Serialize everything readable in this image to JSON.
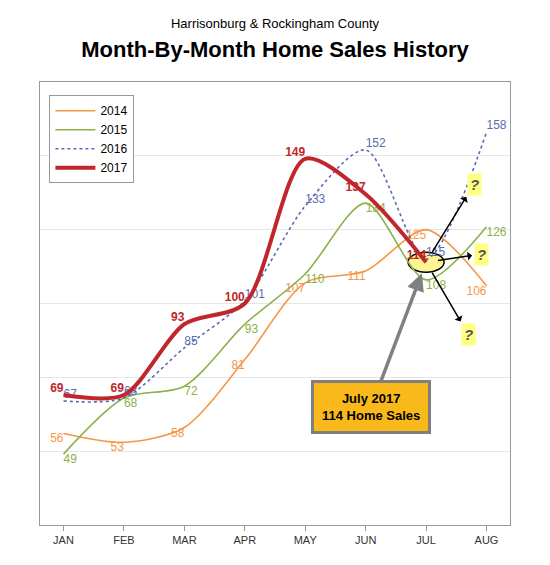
{
  "chart_data": {
    "type": "line",
    "title": "Month-By-Month Home Sales History",
    "subtitle": "Harrisonburg & Rockingham County",
    "categories": [
      "JAN",
      "FEB",
      "MAR",
      "APR",
      "MAY",
      "JUN",
      "JUL",
      "AUG"
    ],
    "series": [
      {
        "name": "2014",
        "color": "#f79646",
        "line_style": "solid",
        "values": [
          56,
          53,
          58,
          81,
          107,
          111,
          125,
          106
        ]
      },
      {
        "name": "2015",
        "color": "#8db04a",
        "line_style": "solid",
        "values": [
          49,
          68,
          72,
          93,
          110,
          134,
          108,
          126
        ]
      },
      {
        "name": "2016",
        "color": "#5a6bb0",
        "line_style": "dot",
        "values": [
          67,
          68,
          85,
          101,
          133,
          152,
          115,
          158
        ]
      },
      {
        "name": "2017",
        "color": "#c0272d",
        "line_style": "solid",
        "values": [
          69,
          69,
          93,
          100,
          149,
          137,
          114,
          null
        ]
      }
    ],
    "ylim": [
      25,
      175
    ],
    "yticks": [
      25,
      50,
      75,
      100,
      125,
      150,
      175
    ],
    "grid": true,
    "legend": "top left",
    "data_labels": true,
    "tick_labels": "x",
    "annotations": [
      {
        "text": [
          "July 2017",
          "114 Home Sales"
        ],
        "x": "JUL",
        "y": 114
      },
      {
        "text": "?",
        "x": "JUL",
        "y": 114
      },
      {
        "text": "?",
        "x": "JUL",
        "y": 114
      },
      {
        "text": "?",
        "x": "JUL",
        "y": 114
      }
    ]
  }
}
